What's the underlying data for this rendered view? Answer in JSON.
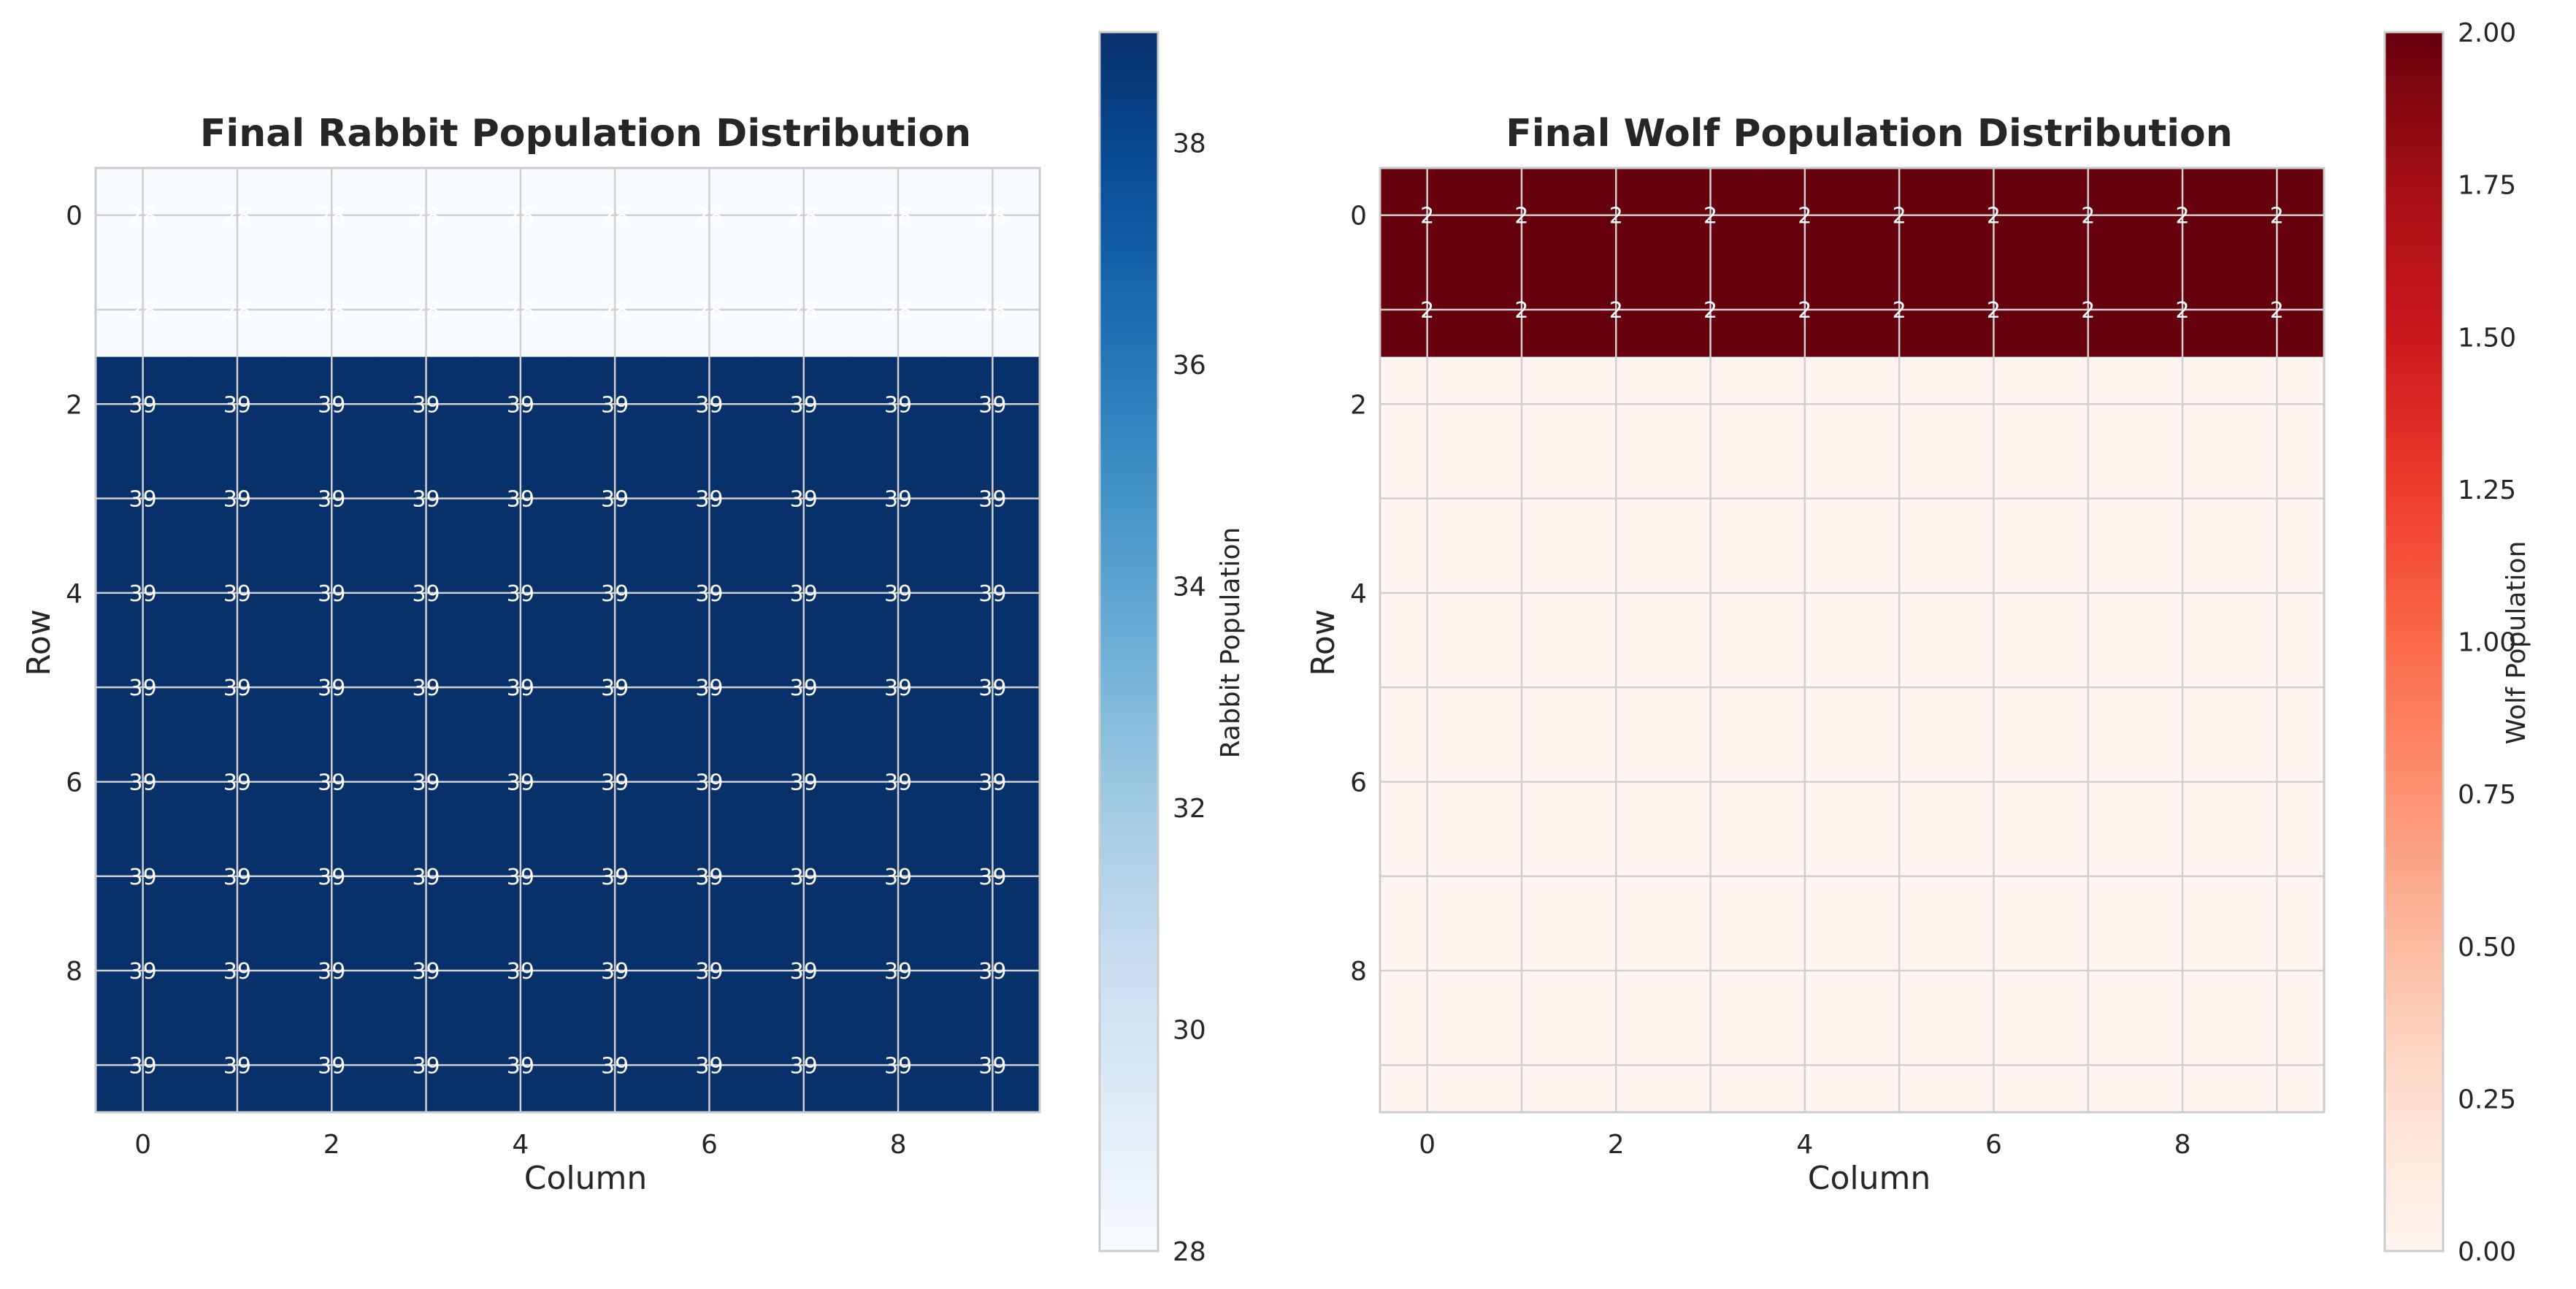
{
  "chart_data": [
    {
      "type": "heatmap",
      "title": "Final Rabbit Population Distribution",
      "xlabel": "Column",
      "ylabel": "Row",
      "colorbar_label": "Rabbit Population",
      "colormap": "Blues",
      "color_low": "#f7fbff",
      "color_high": "#08306b",
      "vmin": 28,
      "vmax": 39,
      "colorbar_ticks": [
        28,
        30,
        32,
        34,
        36,
        38
      ],
      "x_ticks": [
        0,
        2,
        4,
        6,
        8
      ],
      "y_ticks": [
        0,
        2,
        4,
        6,
        8
      ],
      "grid": true,
      "values": [
        [
          28,
          28,
          28,
          28,
          28,
          28,
          28,
          28,
          28,
          28
        ],
        [
          28,
          28,
          28,
          28,
          28,
          28,
          28,
          28,
          28,
          28
        ],
        [
          39,
          39,
          39,
          39,
          39,
          39,
          39,
          39,
          39,
          39
        ],
        [
          39,
          39,
          39,
          39,
          39,
          39,
          39,
          39,
          39,
          39
        ],
        [
          39,
          39,
          39,
          39,
          39,
          39,
          39,
          39,
          39,
          39
        ],
        [
          39,
          39,
          39,
          39,
          39,
          39,
          39,
          39,
          39,
          39
        ],
        [
          39,
          39,
          39,
          39,
          39,
          39,
          39,
          39,
          39,
          39
        ],
        [
          39,
          39,
          39,
          39,
          39,
          39,
          39,
          39,
          39,
          39
        ],
        [
          39,
          39,
          39,
          39,
          39,
          39,
          39,
          39,
          39,
          39
        ],
        [
          39,
          39,
          39,
          39,
          39,
          39,
          39,
          39,
          39,
          39
        ]
      ]
    },
    {
      "type": "heatmap",
      "title": "Final Wolf Population Distribution",
      "xlabel": "Column",
      "ylabel": "Row",
      "colorbar_label": "Wolf Population",
      "colormap": "Reds",
      "color_low": "#fff5f0",
      "color_high": "#67000d",
      "vmin": 0,
      "vmax": 2,
      "colorbar_ticks": [
        0,
        0.25,
        0.5,
        0.75,
        1,
        1.25,
        1.5,
        1.75,
        2
      ],
      "colorbar_tick_labels": [
        "0.00",
        "0.25",
        "0.50",
        "0.75",
        "1.00",
        "1.25",
        "1.50",
        "1.75",
        "2.00"
      ],
      "x_ticks": [
        0,
        2,
        4,
        6,
        8
      ],
      "y_ticks": [
        0,
        2,
        4,
        6,
        8
      ],
      "grid": true,
      "values": [
        [
          2,
          2,
          2,
          2,
          2,
          2,
          2,
          2,
          2,
          2
        ],
        [
          2,
          2,
          2,
          2,
          2,
          2,
          2,
          2,
          2,
          2
        ],
        [
          0,
          0,
          0,
          0,
          0,
          0,
          0,
          0,
          0,
          0
        ],
        [
          0,
          0,
          0,
          0,
          0,
          0,
          0,
          0,
          0,
          0
        ],
        [
          0,
          0,
          0,
          0,
          0,
          0,
          0,
          0,
          0,
          0
        ],
        [
          0,
          0,
          0,
          0,
          0,
          0,
          0,
          0,
          0,
          0
        ],
        [
          0,
          0,
          0,
          0,
          0,
          0,
          0,
          0,
          0,
          0
        ],
        [
          0,
          0,
          0,
          0,
          0,
          0,
          0,
          0,
          0,
          0
        ],
        [
          0,
          0,
          0,
          0,
          0,
          0,
          0,
          0,
          0,
          0
        ],
        [
          0,
          0,
          0,
          0,
          0,
          0,
          0,
          0,
          0,
          0
        ]
      ],
      "annotated_rows": [
        0,
        1
      ]
    }
  ]
}
